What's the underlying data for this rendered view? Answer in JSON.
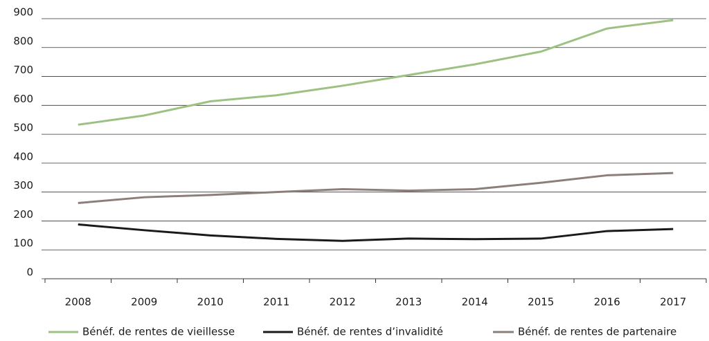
{
  "chart_data": {
    "type": "line",
    "categories": [
      "2008",
      "2009",
      "2010",
      "2011",
      "2012",
      "2013",
      "2014",
      "2015",
      "2016",
      "2017"
    ],
    "series": [
      {
        "name": "Bénéf. de rentes de vieillesse",
        "color": "#9dc183",
        "values": [
          533,
          565,
          614,
          635,
          668,
          705,
          742,
          786,
          866,
          895
        ]
      },
      {
        "name": "Bénéf. de rentes d’invalidité",
        "color": "#1a1a1a",
        "values": [
          188,
          168,
          150,
          138,
          131,
          139,
          137,
          139,
          165,
          172
        ]
      },
      {
        "name": "Bénéf. de rentes de partenaire",
        "color": "#8c7f7a",
        "values": [
          262,
          282,
          290,
          300,
          310,
          305,
          310,
          332,
          358,
          366
        ]
      }
    ],
    "ylim": [
      0,
      900
    ],
    "yticks": [
      0,
      100,
      200,
      300,
      400,
      500,
      600,
      700,
      800,
      900
    ],
    "grid": true,
    "legend": "bottom"
  }
}
